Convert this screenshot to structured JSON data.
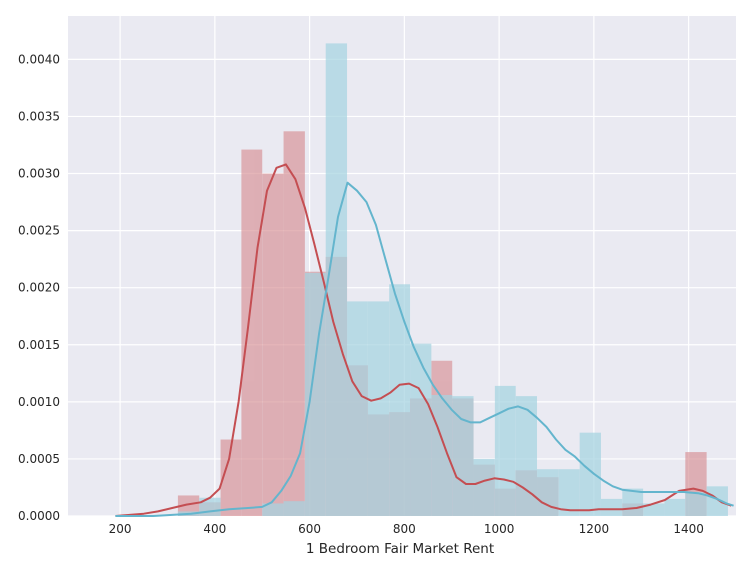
{
  "chart_data": {
    "type": "bar",
    "xlabel": "1 Bedroom Fair Market Rent",
    "ylabel": "",
    "xlim": [
      90,
      1500
    ],
    "ylim": [
      0,
      0.00438
    ],
    "grid": true,
    "background": "#eaeaf2",
    "x_ticks": [
      {
        "value": 200,
        "label": "200"
      },
      {
        "value": 400,
        "label": "400"
      },
      {
        "value": 600,
        "label": "600"
      },
      {
        "value": 800,
        "label": "800"
      },
      {
        "value": 1000,
        "label": "1000"
      },
      {
        "value": 1200,
        "label": "1200"
      },
      {
        "value": 1400,
        "label": "1400"
      }
    ],
    "y_ticks": [
      {
        "value": 0,
        "label": "0.0000"
      },
      {
        "value": 0.0005,
        "label": "0.0005"
      },
      {
        "value": 0.001,
        "label": "0.0010"
      },
      {
        "value": 0.0015,
        "label": "0.0015"
      },
      {
        "value": 0.002,
        "label": "0.0020"
      },
      {
        "value": 0.0025,
        "label": "0.0025"
      },
      {
        "value": 0.003,
        "label": "0.0030"
      },
      {
        "value": 0.0035,
        "label": "0.0035"
      },
      {
        "value": 0.004,
        "label": "0.0040"
      }
    ],
    "series": [
      {
        "color": "#c44e52",
        "hist_color": "#d78f93",
        "hist_opacity": 0.65,
        "bin_edges": [
          322,
          367,
          412,
          456,
          500,
          545,
          590,
          634,
          679,
          723,
          768,
          812,
          857,
          901,
          946,
          991,
          1035,
          1080,
          1125,
          1170,
          1215,
          1260,
          1304,
          1349,
          1393,
          1438,
          1483
        ],
        "counts": [
          0.00018,
          0.00012,
          0.00067,
          0.00321,
          0.003,
          0.00337,
          0.00214,
          0.00227,
          0.00132,
          0.00089,
          0.00091,
          0.00103,
          0.00136,
          0.00103,
          0.00045,
          0.00024,
          0.0004,
          0.00034,
          0.0,
          0.0,
          0.0,
          0.00011,
          0.0,
          0.0,
          0.00056,
          0.0
        ],
        "kde_x": [
          190,
          220,
          250,
          280,
          310,
          340,
          370,
          390,
          410,
          430,
          450,
          470,
          490,
          510,
          530,
          550,
          570,
          590,
          610,
          630,
          650,
          670,
          690,
          710,
          730,
          750,
          770,
          790,
          810,
          830,
          850,
          870,
          890,
          910,
          930,
          950,
          970,
          990,
          1010,
          1030,
          1050,
          1070,
          1090,
          1110,
          1130,
          1150,
          1170,
          1190,
          1210,
          1230,
          1260,
          1290,
          1320,
          1350,
          1380,
          1410,
          1430,
          1450,
          1470,
          1490
        ],
        "kde_y": [
          0.0,
          1e-05,
          2e-05,
          4e-05,
          7e-05,
          0.0001,
          0.00012,
          0.00016,
          0.00024,
          0.0005,
          0.001,
          0.00165,
          0.00235,
          0.00285,
          0.00305,
          0.00308,
          0.00295,
          0.0027,
          0.00238,
          0.00205,
          0.0017,
          0.00142,
          0.00118,
          0.00105,
          0.00101,
          0.00103,
          0.00108,
          0.00115,
          0.00116,
          0.00112,
          0.00098,
          0.00078,
          0.00055,
          0.00034,
          0.00028,
          0.00028,
          0.00031,
          0.00033,
          0.00032,
          0.0003,
          0.00025,
          0.00019,
          0.00012,
          8e-05,
          6e-05,
          5e-05,
          5e-05,
          5e-05,
          6e-05,
          6e-05,
          6e-05,
          7e-05,
          0.0001,
          0.00014,
          0.00022,
          0.00024,
          0.00022,
          0.00018,
          0.00012,
          9e-05
        ]
      },
      {
        "color": "#64b5cd",
        "hist_color": "#a6d4e1",
        "hist_opacity": 0.72,
        "bin_edges": [
          322,
          367,
          412,
          456,
          500,
          545,
          590,
          634,
          679,
          723,
          768,
          812,
          857,
          901,
          946,
          991,
          1035,
          1080,
          1125,
          1170,
          1215,
          1260,
          1304,
          1349,
          1393,
          1438,
          1483
        ],
        "counts": [
          4e-05,
          0.00016,
          0.0,
          0.0,
          0.00011,
          0.00013,
          0.00213,
          0.00414,
          0.00188,
          0.00188,
          0.00203,
          0.00151,
          0.00106,
          0.00105,
          0.0005,
          0.00114,
          0.00105,
          0.00041,
          0.00041,
          0.00073,
          0.00015,
          0.00024,
          0.00011,
          0.00015,
          0.00021,
          0.00026
        ],
        "kde_x": [
          190,
          230,
          270,
          310,
          350,
          390,
          430,
          470,
          500,
          520,
          540,
          560,
          580,
          600,
          620,
          640,
          660,
          680,
          700,
          720,
          740,
          760,
          780,
          800,
          820,
          840,
          860,
          880,
          900,
          920,
          940,
          960,
          980,
          1000,
          1020,
          1040,
          1060,
          1080,
          1100,
          1120,
          1140,
          1160,
          1180,
          1200,
          1220,
          1240,
          1260,
          1280,
          1300,
          1330,
          1360,
          1390,
          1420,
          1440,
          1460,
          1480,
          1495
        ],
        "kde_y": [
          0.0,
          0.0,
          0.0,
          1e-05,
          2e-05,
          4e-05,
          6e-05,
          7e-05,
          8e-05,
          0.00012,
          0.00022,
          0.00035,
          0.00055,
          0.001,
          0.0016,
          0.0021,
          0.00262,
          0.00292,
          0.00285,
          0.00275,
          0.00255,
          0.00225,
          0.00195,
          0.0017,
          0.00148,
          0.0013,
          0.00115,
          0.00103,
          0.00093,
          0.00085,
          0.00082,
          0.00082,
          0.00086,
          0.0009,
          0.00094,
          0.00096,
          0.00093,
          0.00086,
          0.00078,
          0.00067,
          0.00058,
          0.00052,
          0.00044,
          0.00037,
          0.00031,
          0.00026,
          0.00023,
          0.00022,
          0.00021,
          0.00021,
          0.00021,
          0.00021,
          0.0002,
          0.00018,
          0.00015,
          0.00011,
          9e-05
        ]
      }
    ]
  }
}
